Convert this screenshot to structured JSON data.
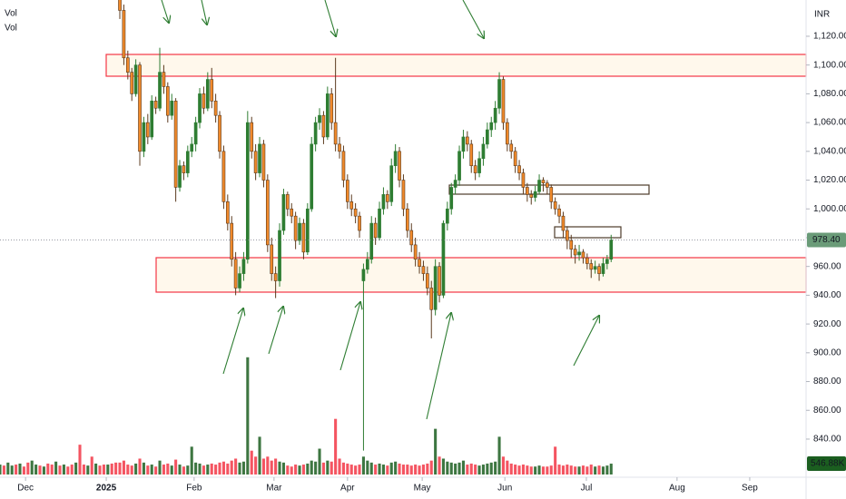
{
  "chart_data": {
    "type": "candlestick",
    "currency": "INR",
    "volume_labels": [
      "Vol",
      "Vol"
    ],
    "up_color": "#2e7d32",
    "down_color": "#f0892a",
    "volume_up_color": "#1b5e20",
    "volume_down_color": "#f23645",
    "xlim": [
      0,
      201.8
    ],
    "xticks": [
      {
        "value": 6.4,
        "label": "Dec"
      },
      {
        "value": 26.6,
        "label": "2025"
      },
      {
        "value": 48.6,
        "label": "Feb"
      },
      {
        "value": 68.6,
        "label": "Mar"
      },
      {
        "value": 87,
        "label": "Apr"
      },
      {
        "value": 105.7,
        "label": "May"
      },
      {
        "value": 126.4,
        "label": "Jun"
      },
      {
        "value": 146.8,
        "label": "Jul"
      },
      {
        "value": 169.5,
        "label": "Aug"
      },
      {
        "value": 187.7,
        "label": "Sep"
      }
    ],
    "ylim": [
      814,
      1145.2
    ],
    "yticks": [
      {
        "value": 840,
        "label": "840.00"
      },
      {
        "value": 860,
        "label": "860.00"
      },
      {
        "value": 880,
        "label": "880.00"
      },
      {
        "value": 900,
        "label": "900.00"
      },
      {
        "value": 920,
        "label": "920.00"
      },
      {
        "value": 940,
        "label": "940.00"
      },
      {
        "value": 960,
        "label": "960.00"
      },
      {
        "value": 980,
        "label": "980.00"
      },
      {
        "value": 1000,
        "label": "1,000.00"
      },
      {
        "value": 1020,
        "label": "1,020.00"
      },
      {
        "value": 1040,
        "label": "1,040.00"
      },
      {
        "value": 1060,
        "label": "1,060.00"
      },
      {
        "value": 1080,
        "label": "1,080.00"
      },
      {
        "value": 1100,
        "label": "1,100.00"
      },
      {
        "value": 1120,
        "label": "1,120.00"
      }
    ],
    "volume_lim": [
      0,
      10000000
    ],
    "last_price": {
      "value": 978.4,
      "label": "978.40"
    },
    "last_volume": {
      "value": 546880,
      "label": "546.88K"
    },
    "early_volume_up": [
      [
        0,
        500000
      ],
      [
        2,
        600000
      ],
      [
        3,
        450000
      ],
      [
        5,
        550000
      ],
      [
        8,
        700000
      ],
      [
        9,
        500000
      ],
      [
        11,
        400000
      ],
      [
        14,
        650000
      ],
      [
        16,
        500000
      ],
      [
        19,
        600000
      ],
      [
        22,
        450000
      ],
      [
        24,
        550000
      ],
      [
        27,
        500000
      ]
    ],
    "early_volume_down": [
      [
        1,
        450000
      ],
      [
        4,
        500000
      ],
      [
        6,
        400000
      ],
      [
        7,
        600000
      ],
      [
        10,
        450000
      ],
      [
        12,
        550000
      ],
      [
        13,
        500000
      ],
      [
        15,
        450000
      ],
      [
        17,
        400000
      ],
      [
        18,
        500000
      ],
      [
        20,
        1500000
      ],
      [
        21,
        500000
      ],
      [
        23,
        900000
      ],
      [
        25,
        450000
      ],
      [
        26,
        500000
      ],
      [
        28,
        550000
      ],
      [
        29,
        600000
      ]
    ],
    "candles": [
      [
        30,
        1150,
        1165,
        1132,
        1138,
        600000
      ],
      [
        31,
        1138,
        1142,
        1100,
        1105,
        700000
      ],
      [
        32,
        1105,
        1110,
        1090,
        1095,
        500000
      ],
      [
        33,
        1095,
        1098,
        1075,
        1080,
        450000
      ],
      [
        34,
        1080,
        1104,
        1078,
        1100,
        550000
      ],
      [
        35,
        1100,
        1102,
        1030,
        1040,
        800000
      ],
      [
        36,
        1040,
        1064,
        1036,
        1060,
        600000
      ],
      [
        37,
        1060,
        1066,
        1045,
        1050,
        450000
      ],
      [
        38,
        1050,
        1079,
        1048,
        1075,
        500000
      ],
      [
        39,
        1075,
        1078,
        1066,
        1070,
        400000
      ],
      [
        40,
        1070,
        1112,
        1068,
        1095,
        700000
      ],
      [
        41,
        1095,
        1100,
        1080,
        1085,
        500000
      ],
      [
        42,
        1085,
        1088,
        1060,
        1065,
        550000
      ],
      [
        43,
        1065,
        1080,
        1062,
        1075,
        450000
      ],
      [
        44,
        1075,
        1077,
        1005,
        1015,
        750000
      ],
      [
        45,
        1015,
        1034,
        1012,
        1030,
        500000
      ],
      [
        46,
        1030,
        1033,
        1020,
        1025,
        400000
      ],
      [
        47,
        1025,
        1044,
        1022,
        1040,
        450000
      ],
      [
        48,
        1040,
        1050,
        1036,
        1045,
        1400000
      ],
      [
        49,
        1045,
        1064,
        1040,
        1060,
        600000
      ],
      [
        50,
        1060,
        1084,
        1056,
        1080,
        550000
      ],
      [
        51,
        1080,
        1085,
        1066,
        1070,
        450000
      ],
      [
        52,
        1070,
        1095,
        1068,
        1090,
        500000
      ],
      [
        53,
        1090,
        1098,
        1070,
        1075,
        550000
      ],
      [
        54,
        1075,
        1080,
        1060,
        1065,
        500000
      ],
      [
        55,
        1065,
        1068,
        1035,
        1040,
        600000
      ],
      [
        56,
        1040,
        1044,
        1000,
        1005,
        650000
      ],
      [
        57,
        1005,
        1010,
        985,
        990,
        550000
      ],
      [
        58,
        990,
        995,
        960,
        965,
        700000
      ],
      [
        59,
        965,
        970,
        940,
        945,
        800000
      ],
      [
        60,
        945,
        960,
        942,
        955,
        600000
      ],
      [
        61,
        955,
        970,
        950,
        965,
        650000
      ],
      [
        62,
        965,
        1068,
        962,
        1060,
        5900000
      ],
      [
        63,
        1060,
        1064,
        1035,
        1040,
        1200000
      ],
      [
        64,
        1040,
        1045,
        1020,
        1025,
        900000
      ],
      [
        65,
        1025,
        1050,
        1022,
        1045,
        1900000
      ],
      [
        66,
        1045,
        1048,
        1015,
        1020,
        800000
      ],
      [
        67,
        1020,
        1024,
        970,
        975,
        900000
      ],
      [
        68,
        975,
        980,
        950,
        955,
        700000
      ],
      [
        69,
        955,
        960,
        938,
        950,
        800000
      ],
      [
        70,
        950,
        990,
        946,
        985,
        650000
      ],
      [
        71,
        985,
        1014,
        982,
        1010,
        600000
      ],
      [
        72,
        1010,
        1012,
        995,
        1000,
        450000
      ],
      [
        73,
        1000,
        1004,
        990,
        995,
        400000
      ],
      [
        74,
        995,
        998,
        972,
        978,
        500000
      ],
      [
        75,
        978,
        994,
        975,
        990,
        450000
      ],
      [
        76,
        990,
        993,
        965,
        970,
        500000
      ],
      [
        77,
        970,
        1004,
        968,
        1000,
        550000
      ],
      [
        78,
        1000,
        1050,
        998,
        1045,
        700000
      ],
      [
        79,
        1045,
        1064,
        1040,
        1060,
        650000
      ],
      [
        80,
        1060,
        1070,
        1055,
        1065,
        1300000
      ],
      [
        81,
        1065,
        1068,
        1045,
        1050,
        600000
      ],
      [
        82,
        1050,
        1085,
        1048,
        1080,
        700000
      ],
      [
        83,
        1080,
        1084,
        1055,
        1060,
        650000
      ],
      [
        84,
        1060,
        1105,
        1040,
        1045,
        2800000
      ],
      [
        85,
        1045,
        1050,
        1035,
        1040,
        800000
      ],
      [
        86,
        1040,
        1044,
        1015,
        1020,
        600000
      ],
      [
        87,
        1020,
        1024,
        1000,
        1005,
        550000
      ],
      [
        88,
        1005,
        1010,
        995,
        1000,
        500000
      ],
      [
        89,
        1000,
        1004,
        990,
        995,
        450000
      ],
      [
        90,
        995,
        998,
        980,
        985,
        500000
      ],
      [
        91,
        950,
        962,
        832,
        958,
        900000
      ],
      [
        92,
        958,
        970,
        955,
        965,
        700000
      ],
      [
        93,
        965,
        995,
        962,
        990,
        600000
      ],
      [
        94,
        990,
        994,
        975,
        980,
        500000
      ],
      [
        95,
        980,
        1005,
        978,
        1000,
        550000
      ],
      [
        96,
        1000,
        1015,
        996,
        1010,
        500000
      ],
      [
        97,
        1010,
        1013,
        1000,
        1005,
        450000
      ],
      [
        98,
        1005,
        1035,
        1002,
        1030,
        600000
      ],
      [
        99,
        1030,
        1045,
        1025,
        1040,
        650000
      ],
      [
        100,
        1040,
        1043,
        1015,
        1020,
        550000
      ],
      [
        101,
        1020,
        1024,
        995,
        1000,
        500000
      ],
      [
        102,
        1000,
        1004,
        980,
        985,
        500000
      ],
      [
        103,
        985,
        990,
        970,
        975,
        450000
      ],
      [
        104,
        975,
        980,
        960,
        965,
        500000
      ],
      [
        105,
        965,
        970,
        955,
        960,
        450000
      ],
      [
        106,
        960,
        964,
        950,
        955,
        500000
      ],
      [
        107,
        955,
        960,
        940,
        945,
        550000
      ],
      [
        108,
        945,
        950,
        910,
        930,
        700000
      ],
      [
        109,
        930,
        965,
        926,
        960,
        2300000
      ],
      [
        110,
        960,
        963,
        935,
        940,
        900000
      ],
      [
        111,
        940,
        992,
        938,
        990,
        800000
      ],
      [
        112,
        990,
        1005,
        985,
        1000,
        650000
      ],
      [
        113,
        1000,
        1018,
        996,
        1015,
        600000
      ],
      [
        114,
        1015,
        1024,
        1010,
        1020,
        550000
      ],
      [
        115,
        1020,
        1044,
        1016,
        1040,
        600000
      ],
      [
        116,
        1040,
        1055,
        1035,
        1050,
        700000
      ],
      [
        117,
        1050,
        1054,
        1040,
        1045,
        500000
      ],
      [
        118,
        1045,
        1048,
        1025,
        1030,
        550000
      ],
      [
        119,
        1030,
        1034,
        1020,
        1025,
        500000
      ],
      [
        120,
        1025,
        1040,
        1022,
        1035,
        450000
      ],
      [
        121,
        1035,
        1050,
        1030,
        1045,
        500000
      ],
      [
        122,
        1045,
        1060,
        1042,
        1055,
        550000
      ],
      [
        123,
        1055,
        1064,
        1050,
        1060,
        600000
      ],
      [
        124,
        1060,
        1075,
        1055,
        1070,
        650000
      ],
      [
        125,
        1070,
        1095,
        1066,
        1090,
        1900000
      ],
      [
        126,
        1090,
        1092,
        1055,
        1060,
        900000
      ],
      [
        127,
        1060,
        1063,
        1040,
        1045,
        700000
      ],
      [
        128,
        1045,
        1048,
        1035,
        1040,
        550000
      ],
      [
        129,
        1040,
        1043,
        1025,
        1030,
        500000
      ],
      [
        130,
        1030,
        1034,
        1020,
        1025,
        450000
      ],
      [
        131,
        1025,
        1028,
        1010,
        1015,
        500000
      ],
      [
        132,
        1015,
        1018,
        1005,
        1010,
        450000
      ],
      [
        133,
        1010,
        1013,
        1003,
        1008,
        400000
      ],
      [
        134,
        1008,
        1016,
        1005,
        1012,
        400000
      ],
      [
        135,
        1012,
        1024,
        1010,
        1020,
        450000
      ],
      [
        136,
        1020,
        1022,
        1012,
        1018,
        400000
      ],
      [
        137,
        1018,
        1020,
        1010,
        1015,
        400000
      ],
      [
        138,
        1015,
        1017,
        1000,
        1005,
        450000
      ],
      [
        139,
        1005,
        1008,
        996,
        1000,
        1400000
      ],
      [
        140,
        1000,
        1003,
        990,
        995,
        500000
      ],
      [
        141,
        995,
        998,
        980,
        985,
        450000
      ],
      [
        142,
        985,
        988,
        972,
        978,
        500000
      ],
      [
        143,
        978,
        982,
        966,
        972,
        450000
      ],
      [
        144,
        972,
        975,
        962,
        968,
        400000
      ],
      [
        145,
        968,
        975,
        964,
        970,
        400000
      ],
      [
        146,
        970,
        972,
        962,
        966,
        450000
      ],
      [
        147,
        966,
        969,
        958,
        962,
        400000
      ],
      [
        148,
        962,
        965,
        952,
        958,
        500000
      ],
      [
        149,
        958,
        964,
        955,
        960,
        400000
      ],
      [
        150,
        960,
        962,
        950,
        955,
        450000
      ],
      [
        151,
        955,
        966,
        953,
        962,
        400000
      ],
      [
        152,
        962,
        968,
        958,
        965,
        450000
      ],
      [
        153,
        965,
        982,
        963,
        978.4,
        546880
      ]
    ]
  }
}
